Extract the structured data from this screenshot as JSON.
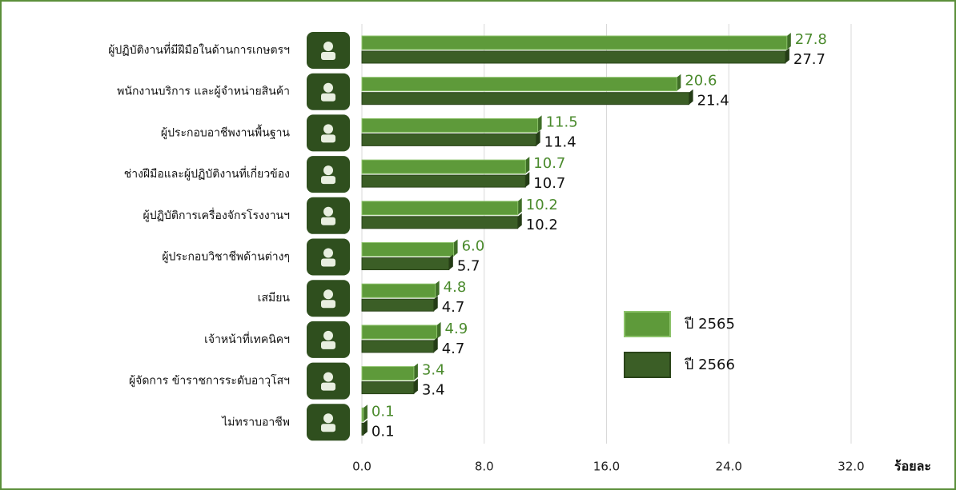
{
  "chart_data": {
    "type": "hbar",
    "x_label": "ร้อยละ",
    "categories": [
      "ผู้ปฏิบัติงานที่มีฝีมือในด้านการเกษตรฯ",
      "พนักงานบริการ และผู้จำหน่ายสินค้า",
      "ผู้ประกอบอาชีพงานพื้นฐาน",
      "ช่างฝีมือและผู้ปฏิบัติงานที่เกี่ยวข้อง",
      "ผู้ปฏิบัติการเครื่องจักรโรงงานฯ",
      "ผู้ประกอบวิชาชีพด้านต่างๆ",
      "เสมียน",
      "เจ้าหน้าที่เทคนิคฯ",
      "ผู้จัดการ ข้าราชการระดับอาวุโสฯ",
      "ไม่ทราบอาชีพ"
    ],
    "series": [
      {
        "name": "ปี 2565",
        "color": "#5e9a3a",
        "label_color": "#4a8a2c",
        "values": [
          27.8,
          20.6,
          11.5,
          10.7,
          10.2,
          6.0,
          4.8,
          4.9,
          3.4,
          0.1
        ],
        "value_labels": [
          "27.8",
          "20.6",
          "11.5",
          "10.7",
          "10.2",
          "6.0",
          "4.8",
          "4.9",
          "3.4",
          "0.1"
        ]
      },
      {
        "name": "ปี 2566",
        "color": "#3b5e26",
        "label_color": "#111111",
        "values": [
          27.7,
          21.4,
          11.4,
          10.7,
          10.2,
          5.7,
          4.7,
          4.7,
          3.4,
          0.1
        ],
        "value_labels": [
          "27.7",
          "21.4",
          "11.4",
          "10.7",
          "10.2",
          "5.7",
          "4.7",
          "4.7",
          "3.4",
          "0.1"
        ]
      }
    ],
    "xlim": [
      0,
      32
    ],
    "xticks": [
      {
        "value": 0,
        "label": "0.0"
      },
      {
        "value": 8,
        "label": "8.0"
      },
      {
        "value": 16,
        "label": "16.0"
      },
      {
        "value": 24,
        "label": "24.0"
      },
      {
        "value": 32,
        "label": "32.0"
      }
    ],
    "grid": true
  }
}
